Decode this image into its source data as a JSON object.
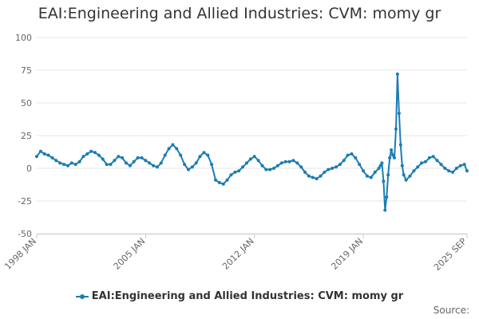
{
  "chart_data": {
    "type": "line",
    "title": "EAI:Engineering and Allied Industries: CVM: momy gr",
    "series": [
      {
        "name": "EAI:Engineering and Allied Industries: CVM: momy gr",
        "color": "#1b7cb3",
        "points": [
          [
            1998.0,
            9
          ],
          [
            1998.25,
            13
          ],
          [
            1998.5,
            11
          ],
          [
            1998.75,
            10
          ],
          [
            1999.0,
            8
          ],
          [
            1999.25,
            6
          ],
          [
            1999.5,
            4
          ],
          [
            1999.75,
            3
          ],
          [
            2000.0,
            2
          ],
          [
            2000.25,
            4
          ],
          [
            2000.5,
            3
          ],
          [
            2000.75,
            5
          ],
          [
            2001.0,
            9
          ],
          [
            2001.25,
            11
          ],
          [
            2001.5,
            13
          ],
          [
            2001.75,
            12
          ],
          [
            2002.0,
            10
          ],
          [
            2002.25,
            7
          ],
          [
            2002.5,
            3
          ],
          [
            2002.75,
            3
          ],
          [
            2003.0,
            6
          ],
          [
            2003.25,
            9
          ],
          [
            2003.5,
            8
          ],
          [
            2003.75,
            4
          ],
          [
            2004.0,
            2
          ],
          [
            2004.25,
            5
          ],
          [
            2004.5,
            8
          ],
          [
            2004.75,
            8
          ],
          [
            2005.0,
            6
          ],
          [
            2005.25,
            4
          ],
          [
            2005.5,
            2
          ],
          [
            2005.75,
            1
          ],
          [
            2006.0,
            4
          ],
          [
            2006.25,
            10
          ],
          [
            2006.5,
            15
          ],
          [
            2006.75,
            18
          ],
          [
            2007.0,
            15
          ],
          [
            2007.25,
            10
          ],
          [
            2007.5,
            3
          ],
          [
            2007.75,
            -1
          ],
          [
            2008.0,
            1
          ],
          [
            2008.25,
            4
          ],
          [
            2008.5,
            9
          ],
          [
            2008.75,
            12
          ],
          [
            2009.0,
            10
          ],
          [
            2009.25,
            3
          ],
          [
            2009.5,
            -9
          ],
          [
            2009.75,
            -11
          ],
          [
            2010.0,
            -12
          ],
          [
            2010.25,
            -9
          ],
          [
            2010.5,
            -5
          ],
          [
            2010.75,
            -3
          ],
          [
            2011.0,
            -2
          ],
          [
            2011.25,
            1
          ],
          [
            2011.5,
            4
          ],
          [
            2011.75,
            7
          ],
          [
            2012.0,
            9
          ],
          [
            2012.25,
            6
          ],
          [
            2012.5,
            2
          ],
          [
            2012.75,
            -1
          ],
          [
            2013.0,
            -1
          ],
          [
            2013.25,
            0
          ],
          [
            2013.5,
            2
          ],
          [
            2013.75,
            4
          ],
          [
            2014.0,
            5
          ],
          [
            2014.25,
            5
          ],
          [
            2014.5,
            6
          ],
          [
            2014.75,
            4
          ],
          [
            2015.0,
            1
          ],
          [
            2015.25,
            -3
          ],
          [
            2015.5,
            -6
          ],
          [
            2015.75,
            -7
          ],
          [
            2016.0,
            -8
          ],
          [
            2016.25,
            -6
          ],
          [
            2016.5,
            -3
          ],
          [
            2016.75,
            -1
          ],
          [
            2017.0,
            0
          ],
          [
            2017.25,
            1
          ],
          [
            2017.5,
            3
          ],
          [
            2017.75,
            6
          ],
          [
            2018.0,
            10
          ],
          [
            2018.25,
            11
          ],
          [
            2018.5,
            8
          ],
          [
            2018.75,
            3
          ],
          [
            2019.0,
            -2
          ],
          [
            2019.25,
            -6
          ],
          [
            2019.5,
            -7
          ],
          [
            2019.75,
            -3
          ],
          [
            2020.0,
            0
          ],
          [
            2020.1,
            2
          ],
          [
            2020.2,
            4
          ],
          [
            2020.3,
            -10
          ],
          [
            2020.4,
            -32
          ],
          [
            2020.5,
            -22
          ],
          [
            2020.6,
            -5
          ],
          [
            2020.7,
            8
          ],
          [
            2020.8,
            14
          ],
          [
            2020.9,
            10
          ],
          [
            2021.0,
            8
          ],
          [
            2021.1,
            30
          ],
          [
            2021.2,
            72
          ],
          [
            2021.3,
            42
          ],
          [
            2021.4,
            18
          ],
          [
            2021.5,
            2
          ],
          [
            2021.6,
            -5
          ],
          [
            2021.75,
            -9
          ],
          [
            2022.0,
            -6
          ],
          [
            2022.25,
            -2
          ],
          [
            2022.5,
            1
          ],
          [
            2022.75,
            4
          ],
          [
            2023.0,
            5
          ],
          [
            2023.25,
            8
          ],
          [
            2023.5,
            9
          ],
          [
            2023.75,
            6
          ],
          [
            2024.0,
            3
          ],
          [
            2024.25,
            0
          ],
          [
            2024.5,
            -2
          ],
          [
            2024.75,
            -3
          ],
          [
            2025.0,
            0
          ],
          [
            2025.25,
            2
          ],
          [
            2025.5,
            3
          ],
          [
            2025.67,
            -2
          ]
        ]
      }
    ],
    "xlim": [
      1998.0,
      2025.67
    ],
    "ylim": [
      -50,
      100
    ],
    "yticks": [
      100,
      75,
      50,
      25,
      0,
      -25,
      -50
    ],
    "xticks": [
      {
        "value": 1998.0,
        "label": "1998 JAN"
      },
      {
        "value": 2005.0,
        "label": "2005 JAN"
      },
      {
        "value": 2012.0,
        "label": "2012 JAN"
      },
      {
        "value": 2019.0,
        "label": "2019 JAN"
      },
      {
        "value": 2025.67,
        "label": "2025 SEP"
      }
    ],
    "grid": true,
    "legend": "bottom-center",
    "source_label": "Source:"
  }
}
